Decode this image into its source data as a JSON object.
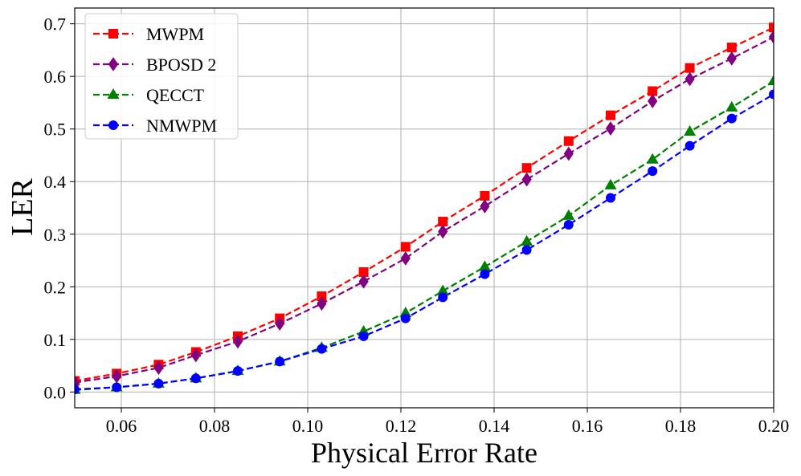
{
  "chart_data": {
    "type": "line",
    "title": "",
    "xlabel": "Physical Error Rate",
    "ylabel": "LER",
    "xlim": [
      0.05,
      0.2
    ],
    "ylim": [
      -0.03,
      0.73
    ],
    "grid": true,
    "legend_position": "top-left",
    "x_ticks": [
      0.06,
      0.08,
      0.1,
      0.12,
      0.14,
      0.16,
      0.18,
      0.2
    ],
    "x_tick_labels": [
      "0.06",
      "0.08",
      "0.10",
      "0.12",
      "0.14",
      "0.16",
      "0.18",
      "0.20"
    ],
    "y_ticks": [
      0.0,
      0.1,
      0.2,
      0.3,
      0.4,
      0.5,
      0.6,
      0.7
    ],
    "y_tick_labels": [
      "0.0",
      "0.1",
      "0.2",
      "0.3",
      "0.4",
      "0.5",
      "0.6",
      "0.7"
    ],
    "x": [
      0.05,
      0.059,
      0.068,
      0.076,
      0.085,
      0.094,
      0.103,
      0.112,
      0.121,
      0.129,
      0.138,
      0.147,
      0.156,
      0.165,
      0.174,
      0.182,
      0.191,
      0.2
    ],
    "series": [
      {
        "name": "MWPM",
        "color": "#ff0000",
        "marker": "square",
        "values": [
          0.021,
          0.035,
          0.052,
          0.076,
          0.106,
          0.14,
          0.182,
          0.228,
          0.276,
          0.324,
          0.373,
          0.426,
          0.477,
          0.526,
          0.572,
          0.616,
          0.655,
          0.693
        ]
      },
      {
        "name": "BPOSD 2",
        "color": "#800080",
        "marker": "diamond",
        "values": [
          0.018,
          0.03,
          0.046,
          0.07,
          0.096,
          0.13,
          0.168,
          0.21,
          0.254,
          0.305,
          0.353,
          0.404,
          0.453,
          0.501,
          0.553,
          0.595,
          0.634,
          0.675
        ]
      },
      {
        "name": "QECCT",
        "color": "#008000",
        "marker": "triangle",
        "values": [
          0.004,
          0.009,
          0.016,
          0.026,
          0.04,
          0.058,
          0.084,
          0.115,
          0.15,
          0.192,
          0.238,
          0.286,
          0.335,
          0.393,
          0.442,
          0.495,
          0.541,
          0.591
        ]
      },
      {
        "name": "NMWPM",
        "color": "#0000ff",
        "marker": "circle",
        "values": [
          0.005,
          0.009,
          0.016,
          0.026,
          0.04,
          0.058,
          0.082,
          0.106,
          0.14,
          0.18,
          0.224,
          0.27,
          0.318,
          0.369,
          0.42,
          0.468,
          0.52,
          0.566
        ]
      }
    ]
  }
}
